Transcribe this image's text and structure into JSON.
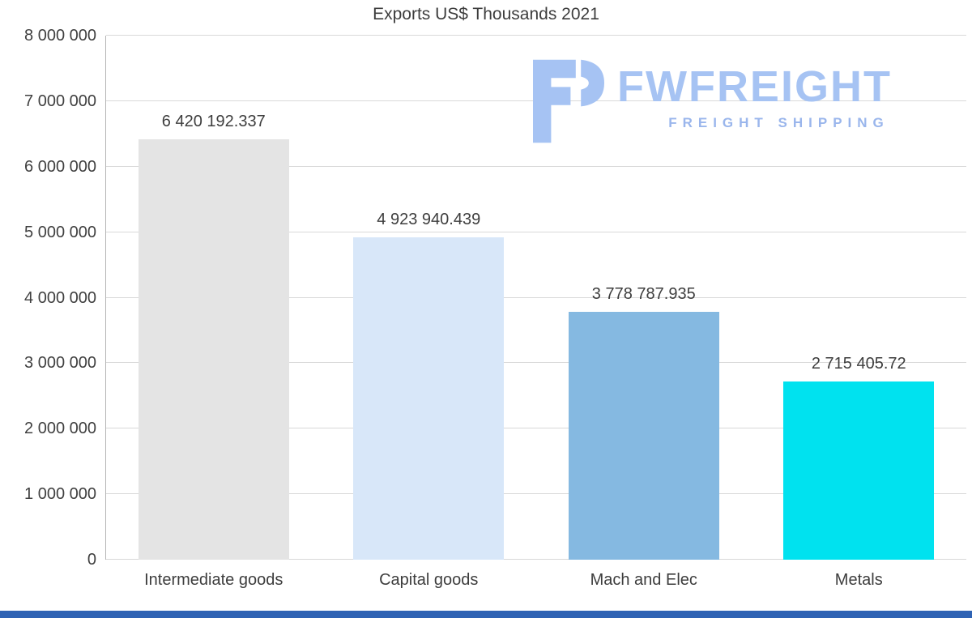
{
  "chart_data": {
    "type": "bar",
    "title": "Exports US$ Thousands 2021",
    "categories": [
      "Intermediate goods",
      "Capital goods",
      "Mach and Elec",
      "Metals"
    ],
    "values": [
      6420192.337,
      4923940.439,
      3778787.935,
      2715405.72
    ],
    "value_labels": [
      "6 420 192.337",
      "4 923 940.439",
      "3 778 787.935",
      "2 715 405.72"
    ],
    "bar_colors": [
      "#e4e4e4",
      "#d8e7f9",
      "#85b9e1",
      "#00e2ef"
    ],
    "ylim": [
      0,
      8000000
    ],
    "ytick_interval": 1000000,
    "ytick_labels": [
      "0",
      "1 000 000",
      "2 000 000",
      "3 000 000",
      "4 000 000",
      "5 000 000",
      "6 000 000",
      "7 000 000",
      "8 000 000"
    ],
    "grid": true,
    "legend": "none",
    "xlabel": "",
    "ylabel": ""
  },
  "logo": {
    "name": "FWFREIGHT",
    "tagline": "FREIGHT SHIPPING",
    "color": "#a6c3f3",
    "tagline_color": "#9ab6ec"
  },
  "page": {
    "bottom_strip_color": "#2f63b4"
  }
}
